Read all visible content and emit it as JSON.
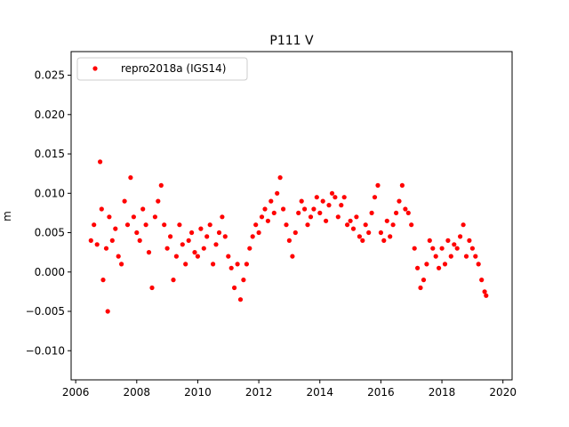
{
  "chart_data": {
    "type": "scatter",
    "title": "P111 V",
    "xlabel": "",
    "ylabel": "m",
    "xlim": [
      2005.85,
      2020.3
    ],
    "ylim": [
      -0.0137,
      0.028
    ],
    "x_ticks": [
      2006,
      2008,
      2010,
      2012,
      2014,
      2016,
      2018,
      2020
    ],
    "y_ticks": [
      -0.01,
      -0.005,
      0.0,
      0.005,
      0.01,
      0.015,
      0.02,
      0.025
    ],
    "y_tick_labels": [
      "−0.010",
      "−0.005",
      "0.000",
      "0.005",
      "0.010",
      "0.015",
      "0.020",
      "0.025"
    ],
    "grid": false,
    "legend_position": "top-left",
    "series": [
      {
        "name": "repro2018a (IGS14)",
        "color": "#ff0000",
        "marker": "circle",
        "x": [
          2006.5,
          2006.6,
          2006.7,
          2006.8,
          2006.85,
          2006.9,
          2007.0,
          2007.05,
          2007.1,
          2007.2,
          2007.3,
          2007.4,
          2007.5,
          2007.6,
          2007.7,
          2007.8,
          2007.9,
          2008.0,
          2008.1,
          2008.2,
          2008.3,
          2008.4,
          2008.5,
          2008.6,
          2008.7,
          2008.8,
          2008.9,
          2009.0,
          2009.1,
          2009.2,
          2009.3,
          2009.4,
          2009.5,
          2009.6,
          2009.7,
          2009.8,
          2009.9,
          2010.0,
          2010.1,
          2010.2,
          2010.3,
          2010.4,
          2010.5,
          2010.6,
          2010.7,
          2010.8,
          2010.9,
          2011.0,
          2011.1,
          2011.2,
          2011.3,
          2011.4,
          2011.5,
          2011.6,
          2011.7,
          2011.8,
          2011.9,
          2012.0,
          2012.1,
          2012.2,
          2012.3,
          2012.4,
          2012.5,
          2012.6,
          2012.7,
          2012.8,
          2012.9,
          2013.0,
          2013.1,
          2013.2,
          2013.3,
          2013.4,
          2013.5,
          2013.6,
          2013.7,
          2013.8,
          2013.9,
          2014.0,
          2014.1,
          2014.2,
          2014.3,
          2014.4,
          2014.5,
          2014.6,
          2014.7,
          2014.8,
          2014.9,
          2015.0,
          2015.1,
          2015.2,
          2015.3,
          2015.4,
          2015.5,
          2015.6,
          2015.7,
          2015.8,
          2015.9,
          2016.0,
          2016.1,
          2016.2,
          2016.3,
          2016.4,
          2016.5,
          2016.6,
          2016.7,
          2016.8,
          2016.9,
          2017.0,
          2017.1,
          2017.2,
          2017.3,
          2017.4,
          2017.5,
          2017.6,
          2017.7,
          2017.8,
          2017.9,
          2018.0,
          2018.1,
          2018.2,
          2018.3,
          2018.4,
          2018.5,
          2018.6,
          2018.7,
          2018.8,
          2018.9,
          2019.0,
          2019.1,
          2019.2,
          2019.3,
          2019.4,
          2019.45
        ],
        "y": [
          0.004,
          0.006,
          0.0035,
          0.014,
          0.008,
          -0.001,
          0.003,
          -0.005,
          0.007,
          0.004,
          0.0055,
          0.002,
          0.001,
          0.009,
          0.006,
          0.012,
          0.007,
          0.005,
          0.004,
          0.008,
          0.006,
          0.0025,
          -0.002,
          0.007,
          0.009,
          0.011,
          0.006,
          0.003,
          0.0045,
          -0.001,
          0.002,
          0.006,
          0.0035,
          0.001,
          0.004,
          0.005,
          0.0025,
          0.002,
          0.0055,
          0.003,
          0.0045,
          0.006,
          0.001,
          0.0035,
          0.005,
          0.007,
          0.0045,
          0.002,
          0.0005,
          -0.002,
          0.001,
          -0.0035,
          -0.001,
          0.001,
          0.003,
          0.0045,
          0.006,
          0.005,
          0.007,
          0.008,
          0.0065,
          0.009,
          0.0075,
          0.01,
          0.012,
          0.008,
          0.006,
          0.004,
          0.002,
          0.005,
          0.0075,
          0.009,
          0.008,
          0.006,
          0.007,
          0.008,
          0.0095,
          0.0075,
          0.009,
          0.0065,
          0.0085,
          0.01,
          0.0095,
          0.007,
          0.0085,
          0.0095,
          0.006,
          0.0065,
          0.0055,
          0.007,
          0.0045,
          0.004,
          0.006,
          0.005,
          0.0075,
          0.0095,
          0.011,
          0.005,
          0.004,
          0.0065,
          0.0045,
          0.006,
          0.0075,
          0.009,
          0.011,
          0.008,
          0.0075,
          0.006,
          0.003,
          0.0005,
          -0.002,
          -0.001,
          0.001,
          0.004,
          0.003,
          0.002,
          0.0005,
          0.003,
          0.001,
          0.004,
          0.002,
          0.0035,
          0.003,
          0.0045,
          0.006,
          0.002,
          0.004,
          0.003,
          0.002,
          0.001,
          -0.001,
          -0.0025,
          -0.003
        ]
      }
    ]
  }
}
